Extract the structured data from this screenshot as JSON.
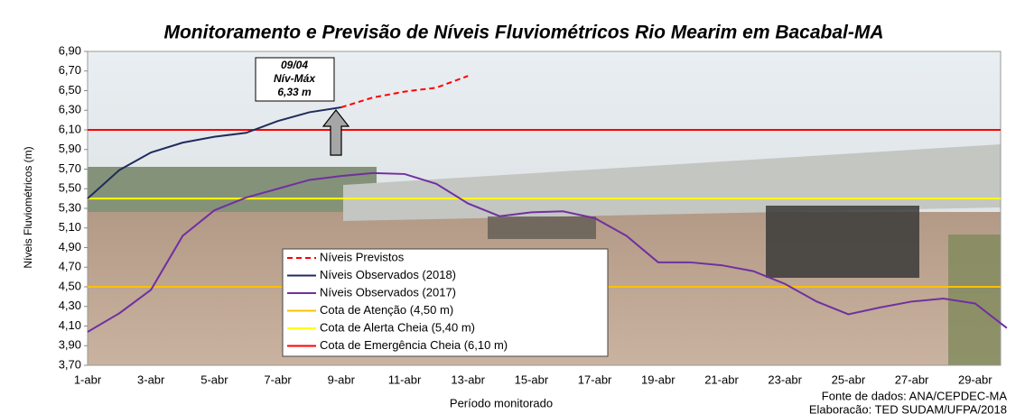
{
  "chart_data": {
    "type": "line",
    "title": "Monitoramento e Previsão de Níveis Fluviométricos Rio Mearim em Bacabal-MA",
    "y_label": "Níveis Fluviométricos (m)",
    "x_label": "Período monitorado",
    "source_lines": [
      "Fonte de dados: ANA/CEPDEC-MA",
      "Elaboração: TED SUDAM/UFPA/2018"
    ],
    "categories": [
      "1-abr",
      null,
      "3-abr",
      null,
      "5-abr",
      null,
      "7-abr",
      null,
      "9-abr",
      null,
      "11-abr",
      null,
      "13-abr",
      null,
      "15-abr",
      null,
      "17-abr",
      null,
      "19-abr",
      null,
      "21-abr",
      null,
      "23-abr",
      null,
      "25-abr",
      null,
      "27-abr",
      null,
      "29-abr",
      null
    ],
    "ylim": [
      3.7,
      6.9
    ],
    "yticks": [
      {
        "value": 3.7,
        "label": "3,70"
      },
      {
        "value": 3.9,
        "label": "3,90"
      },
      {
        "value": 4.1,
        "label": "4,10"
      },
      {
        "value": 4.3,
        "label": "4,30"
      },
      {
        "value": 4.5,
        "label": "4,50"
      },
      {
        "value": 4.7,
        "label": "4,70"
      },
      {
        "value": 4.9,
        "label": "4,90"
      },
      {
        "value": 5.1,
        "label": "5,10"
      },
      {
        "value": 5.3,
        "label": "5,30"
      },
      {
        "value": 5.5,
        "label": "5,50"
      },
      {
        "value": 5.7,
        "label": "5,70"
      },
      {
        "value": 5.9,
        "label": "5,90"
      },
      {
        "value": 6.1,
        "label": "6,10"
      },
      {
        "value": 6.3,
        "label": "6,30"
      },
      {
        "value": 6.5,
        "label": "6,50"
      },
      {
        "value": 6.7,
        "label": "6,70"
      },
      {
        "value": 6.9,
        "label": "6,90"
      }
    ],
    "series": [
      {
        "name": "Níveis Previstos",
        "color": "#ff0000",
        "dashed": true,
        "values": [
          null,
          null,
          null,
          null,
          null,
          null,
          null,
          null,
          6.33,
          6.43,
          6.49,
          6.53,
          6.65,
          null,
          null,
          null,
          null,
          null,
          null,
          null,
          null,
          null,
          null,
          null,
          null,
          null,
          null,
          null,
          null,
          null
        ]
      },
      {
        "name": "Níveis Observados (2018)",
        "color": "#1f2d5c",
        "dashed": false,
        "values": [
          5.4,
          5.69,
          5.87,
          5.97,
          6.03,
          6.07,
          6.19,
          6.28,
          6.33,
          null,
          null,
          null,
          null,
          null,
          null,
          null,
          null,
          null,
          null,
          null,
          null,
          null,
          null,
          null,
          null,
          null,
          null,
          null,
          null,
          null
        ]
      },
      {
        "name": "Níveis Observados (2017)",
        "color": "#7030a0",
        "dashed": false,
        "values": [
          4.04,
          4.23,
          4.47,
          5.02,
          5.28,
          5.41,
          5.5,
          5.59,
          5.63,
          5.66,
          5.65,
          5.55,
          5.35,
          5.22,
          5.26,
          5.27,
          5.2,
          5.02,
          4.75,
          4.75,
          4.72,
          4.66,
          4.53,
          4.35,
          4.22,
          4.29,
          4.35,
          4.38,
          4.33,
          4.08
        ]
      }
    ],
    "reference_lines": [
      {
        "name": "Cota de Atenção (4,50 m)",
        "value": 4.5,
        "color": "#ffc000"
      },
      {
        "name": "Cota de Alerta Cheia (5,40 m)",
        "value": 5.4,
        "color": "#ffff00"
      },
      {
        "name": "Cota de Emergência Cheia (6,10 m)",
        "value": 6.1,
        "color": "#ff0000"
      }
    ],
    "annotation": {
      "lines": [
        "09/04",
        "Nív-Máx",
        "6,33 m"
      ]
    }
  }
}
